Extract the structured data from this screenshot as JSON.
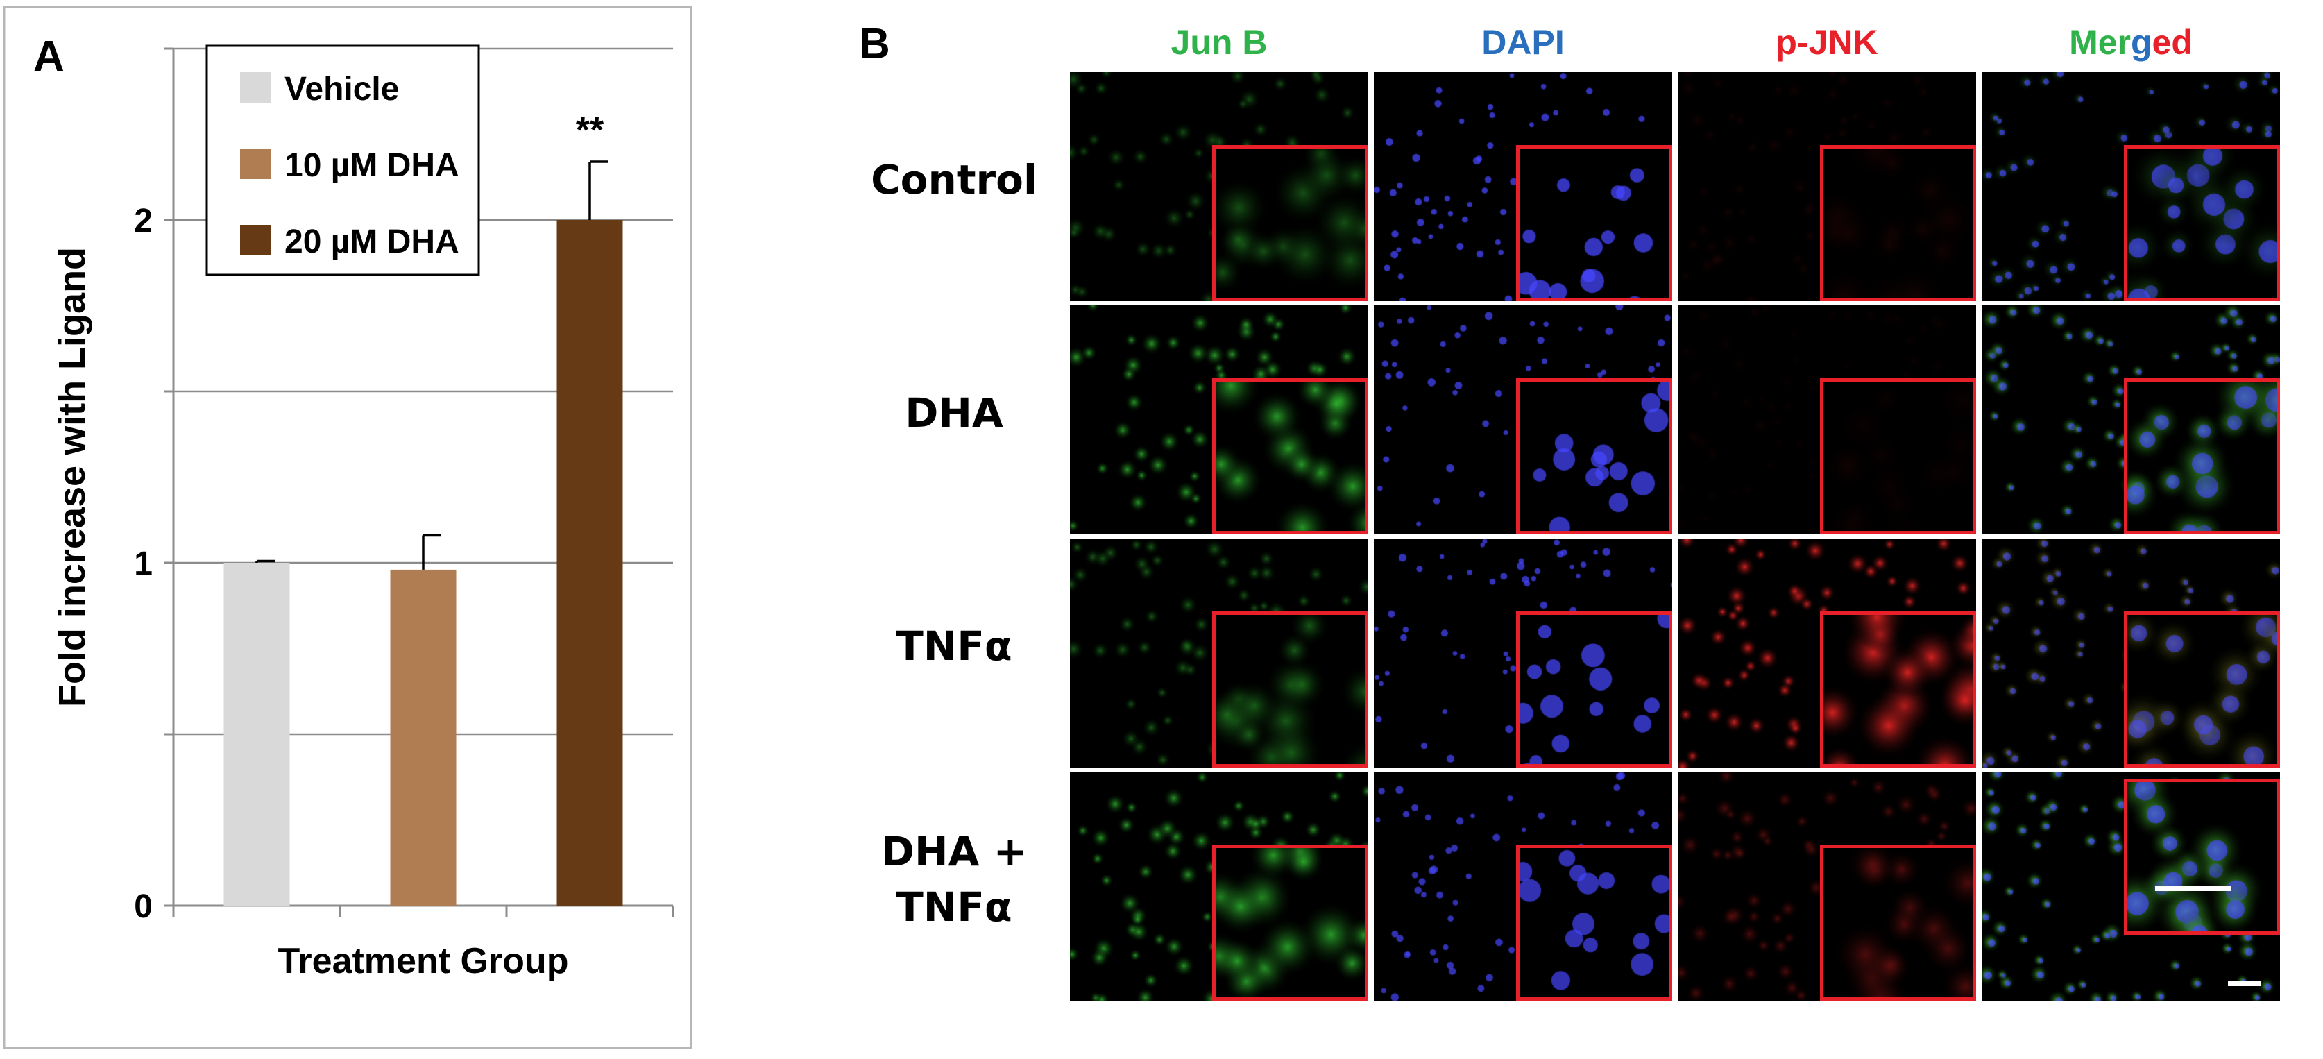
{
  "panel_a_label": "A",
  "panel_b_label": "B",
  "chart_data": {
    "type": "bar",
    "categories": [
      "Vehicle",
      "10 µM DHA",
      "20 µM DHA"
    ],
    "values": [
      1.0,
      0.98,
      2.0
    ],
    "errors": [
      0.005,
      0.1,
      0.17
    ],
    "colors": [
      "#d9d9d9",
      "#b07d52",
      "#653a14"
    ],
    "xlabel": "Treatment Group",
    "ylabel": "Fold increase with Ligand",
    "ylim": [
      0,
      2.5
    ],
    "yticks": [
      0,
      1,
      2
    ],
    "grid_step": 0.5,
    "grid": true,
    "legend": {
      "placement": "top-left",
      "entries": [
        "Vehicle",
        "10 µM DHA",
        "20 µM DHA"
      ]
    },
    "annotations": [
      {
        "category": "20 µM DHA",
        "text": "**"
      }
    ]
  },
  "micrographs": {
    "columns": [
      {
        "label": "Jun B",
        "color": "#2fb24a"
      },
      {
        "label": "DAPI",
        "color": "#2a6fbd"
      },
      {
        "label": "p-JNK",
        "color": "#e8202a"
      },
      {
        "label": "Merged",
        "parts": [
          {
            "text": "Mer",
            "color": "#2fb24a"
          },
          {
            "text": "g",
            "color": "#2a6fbd"
          },
          {
            "text": "ed",
            "color": "#e8202a"
          }
        ]
      }
    ],
    "rows": [
      {
        "label_lines": [
          "Control"
        ]
      },
      {
        "label_lines": [
          "DHA"
        ]
      },
      {
        "label_lines": [
          "TNFα"
        ]
      },
      {
        "label_lines": [
          "DHA +",
          "TNFα"
        ]
      }
    ]
  }
}
